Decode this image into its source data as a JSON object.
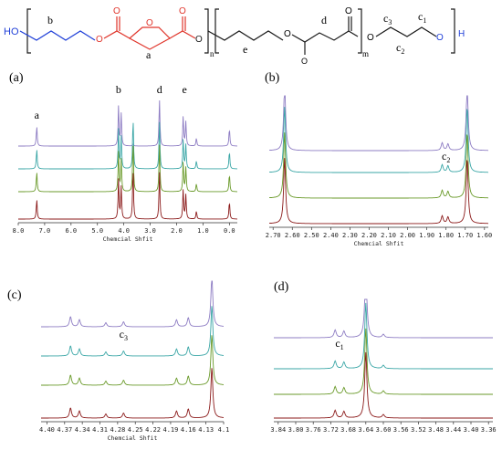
{
  "colors": {
    "black": "#1a1a1a",
    "red": "#e0352b",
    "blue": "#1f3fd8",
    "series": [
      "#8d7cc3",
      "#3aa6a6",
      "#6a9a2a",
      "#8b1a1a"
    ]
  },
  "scheme": {
    "ho": "HO",
    "h": "H",
    "label_b": "b",
    "label_a": "a",
    "label_e": "e",
    "label_d": "d",
    "label_c3": "c",
    "label_c3_sub": "3",
    "label_c2": "c",
    "label_c2_sub": "2",
    "label_c1": "c",
    "label_c1_sub": "1",
    "sub_n": "n",
    "sub_m": "m",
    "o_ester": "O",
    "o_ring": "O",
    "o_carbonyl": "O"
  },
  "chart_data": [
    {
      "type": "line",
      "panel": "(a)",
      "xlabel": "Chemcial Shfit",
      "xticks": [
        "8.0",
        "7.0",
        "6.0",
        "5.0",
        "4.0",
        "3.0",
        "2.0",
        "1.0",
        "0.0"
      ],
      "xlim": [
        8.0,
        -0.3
      ],
      "peak_labels": [
        {
          "text": "a",
          "x": 7.3
        },
        {
          "text": "b",
          "x": 4.2
        },
        {
          "text": "d",
          "x": 2.65
        },
        {
          "text": "e",
          "x": 1.7
        }
      ],
      "peaks": [
        {
          "x": 7.3,
          "h": 1.0
        },
        {
          "x": 4.2,
          "h": 2.0
        },
        {
          "x": 4.1,
          "h": 1.6
        },
        {
          "x": 3.65,
          "h": 2.6
        },
        {
          "x": 2.65,
          "h": 2.4
        },
        {
          "x": 1.75,
          "h": 1.5
        },
        {
          "x": 1.65,
          "h": 1.2
        },
        {
          "x": 1.25,
          "h": 0.4
        },
        {
          "x": 0.0,
          "h": 0.9
        }
      ]
    },
    {
      "type": "line",
      "panel": "(b)",
      "xlabel": "Chemcial Shfit",
      "xticks": [
        "2.70",
        "2.60",
        "2.50",
        "2.40",
        "2.30",
        "2.20",
        "2.10",
        "2.00",
        "1.90",
        "1.80",
        "1.70",
        "1.60"
      ],
      "xlim": [
        2.72,
        1.58
      ],
      "peak_labels": [
        {
          "text": "c",
          "sub": "2",
          "x": 1.8
        }
      ],
      "peaks": [
        {
          "x": 2.64,
          "h": 3.0
        },
        {
          "x": 1.82,
          "h": 0.35
        },
        {
          "x": 1.79,
          "h": 0.3
        },
        {
          "x": 1.69,
          "h": 3.0
        }
      ]
    },
    {
      "type": "line",
      "panel": "(c)",
      "xlabel": "Chemcial Shfit",
      "xticks": [
        "4.40",
        "4.37",
        "4.34",
        "4.31",
        "4.28",
        "4.25",
        "4.22",
        "4.19",
        "4.16",
        "4.13",
        "4.1"
      ],
      "xlim": [
        4.41,
        4.1
      ],
      "peak_labels": [
        {
          "text": "c",
          "sub": "3",
          "x": 4.27
        }
      ],
      "peaks": [
        {
          "x": 4.36,
          "h": 0.5
        },
        {
          "x": 4.345,
          "h": 0.35
        },
        {
          "x": 4.3,
          "h": 0.2
        },
        {
          "x": 4.27,
          "h": 0.25
        },
        {
          "x": 4.18,
          "h": 0.35
        },
        {
          "x": 4.16,
          "h": 0.45
        },
        {
          "x": 4.12,
          "h": 2.5
        }
      ]
    },
    {
      "type": "line",
      "panel": "(d)",
      "xlabel": "",
      "xticks": [
        "3.84",
        "3.80",
        "3.76",
        "3.72",
        "3.68",
        "3.64",
        "3.60",
        "3.56",
        "3.52",
        "3.48",
        "3.44",
        "3.40",
        "3.36"
      ],
      "xlim": [
        3.85,
        3.35
      ],
      "peak_labels": [
        {
          "text": "c",
          "sub": "1",
          "x": 3.7
        }
      ],
      "peaks": [
        {
          "x": 3.71,
          "h": 0.35
        },
        {
          "x": 3.69,
          "h": 0.3
        },
        {
          "x": 3.64,
          "h": 3.0
        },
        {
          "x": 3.6,
          "h": 0.15
        }
      ]
    }
  ]
}
